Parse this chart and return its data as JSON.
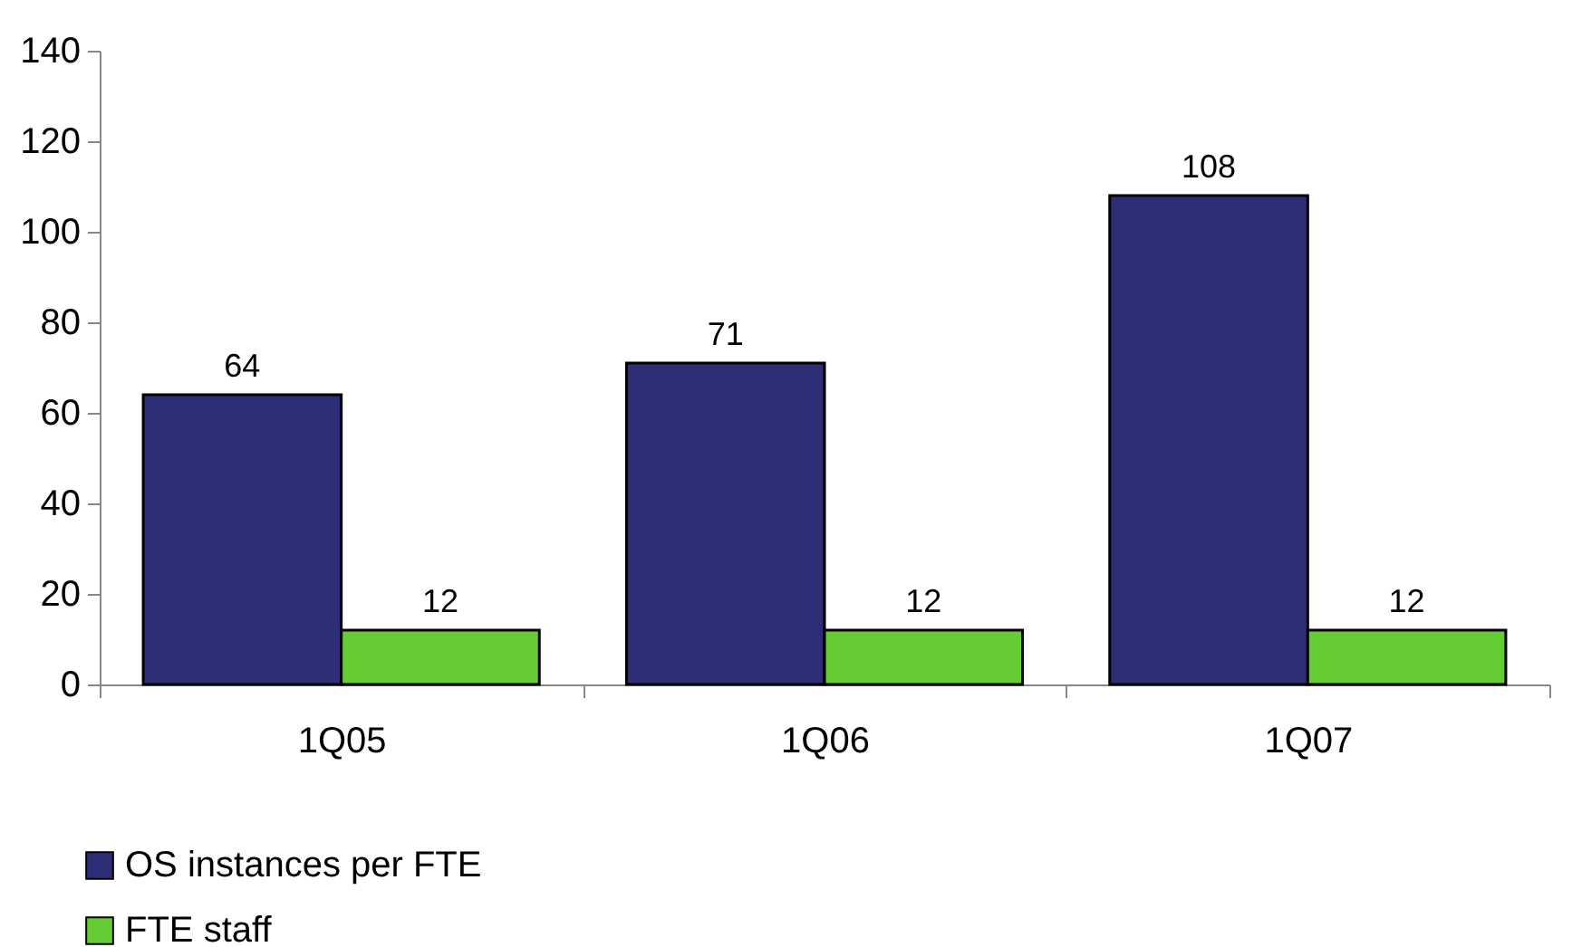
{
  "chart_data": {
    "type": "bar",
    "categories": [
      "1Q05",
      "1Q06",
      "1Q07"
    ],
    "series": [
      {
        "name": "OS instances per FTE",
        "color": "#2e2e78",
        "values": [
          64,
          71,
          108
        ]
      },
      {
        "name": "FTE staff",
        "color": "#66cc33",
        "values": [
          12,
          12,
          12
        ]
      }
    ],
    "ylim": [
      0,
      140
    ],
    "yticks": [
      0,
      20,
      40,
      60,
      80,
      100,
      120,
      140
    ],
    "legend": "bottom left",
    "data_labels": true
  }
}
